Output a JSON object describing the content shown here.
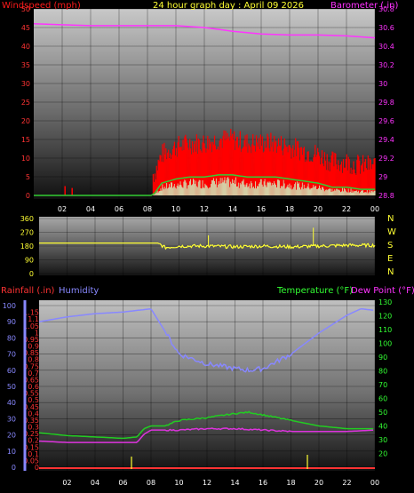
{
  "title": "24 hour graph day : April 09 2026",
  "colors": {
    "wind": "#ff1a1a",
    "gust_bg": "#ff0000",
    "baro": "#ff33ff",
    "winddir": "#ffff33",
    "humidity": "#8888ff",
    "temperature": "#22cc22",
    "dewpoint": "#dd33dd",
    "rain_axis": "#ff3333",
    "yellow_text": "#ffff33",
    "right_green": "#33ff33"
  },
  "x_ticks": [
    "02",
    "04",
    "06",
    "08",
    "10",
    "12",
    "14",
    "16",
    "18",
    "20",
    "22",
    "00"
  ],
  "compass": [
    "N",
    "W",
    "S",
    "E",
    "N"
  ],
  "chart_data": [
    {
      "type": "line",
      "title": "24 hour graph day : April 09 2026",
      "xlabel": "",
      "series": [
        {
          "name": "Windspeed (mph)",
          "x": [
            0,
            8,
            8.5,
            9,
            10,
            11,
            12,
            13,
            14,
            15,
            16,
            17,
            18,
            19,
            20,
            21,
            22,
            23,
            24
          ],
          "values": [
            0,
            0,
            1,
            6,
            8,
            9,
            9,
            10,
            10,
            9,
            9,
            9,
            8,
            7,
            6,
            4,
            4,
            3,
            3
          ]
        },
        {
          "name": "Barometer (.in)",
          "x": [
            0,
            2,
            4,
            6,
            8,
            10,
            12,
            14,
            16,
            18,
            20,
            22,
            24
          ],
          "values": [
            30.64,
            30.63,
            30.62,
            30.62,
            30.62,
            30.62,
            30.6,
            30.56,
            30.53,
            30.52,
            30.52,
            30.51,
            30.49
          ]
        }
      ],
      "left_axis": {
        "label": "Windspeed (mph)",
        "ylim": [
          0,
          50
        ],
        "ticks": [
          0,
          5,
          10,
          15,
          20,
          25,
          30,
          35,
          40,
          45,
          50
        ]
      },
      "right_axis": {
        "label": "Barometer (.in)",
        "ylim": [
          28.8,
          30.8
        ],
        "ticks": [
          "28.8",
          "29",
          "29.2",
          "29.4",
          "29.6",
          "29.8",
          "30",
          "30.2",
          "30.4",
          "30.6",
          "30.8"
        ]
      }
    },
    {
      "type": "line",
      "series": [
        {
          "name": "Wind direction",
          "x": [
            0,
            8.5,
            9,
            10,
            12,
            14,
            16,
            18,
            20,
            22,
            24
          ],
          "values": [
            200,
            200,
            170,
            180,
            180,
            175,
            180,
            175,
            180,
            185,
            185
          ]
        }
      ],
      "ylim": [
        0,
        360
      ],
      "ticks": [
        0,
        90,
        180,
        270,
        360
      ]
    },
    {
      "type": "line",
      "series": [
        {
          "name": "Humidity",
          "x": [
            0,
            2,
            4,
            6,
            7,
            8,
            9,
            10,
            12,
            14,
            15,
            16,
            18,
            20,
            22,
            23,
            24
          ],
          "values": [
            90,
            93,
            95,
            96,
            97,
            98,
            84,
            70,
            64,
            61,
            60,
            61,
            70,
            83,
            94,
            98,
            97
          ]
        },
        {
          "name": "Temperature (°F)",
          "x": [
            0,
            2,
            4,
            6,
            7,
            7.5,
            8,
            9,
            10,
            12,
            14,
            15,
            16,
            18,
            20,
            22,
            24
          ],
          "values": [
            35,
            33,
            32,
            31,
            32,
            38,
            40,
            40,
            44,
            46,
            49,
            50,
            48,
            44,
            40,
            38,
            38
          ]
        },
        {
          "name": "Dew Point (°F)",
          "x": [
            0,
            2,
            4,
            6,
            7,
            7.5,
            8,
            9,
            10,
            12,
            14,
            16,
            18,
            20,
            22,
            24
          ],
          "values": [
            29,
            28,
            28,
            28,
            28,
            34,
            37,
            37,
            37,
            38,
            38,
            37,
            36,
            36,
            36,
            37
          ]
        },
        {
          "name": "Rainfall (.in)",
          "x": [
            0,
            24
          ],
          "values": [
            0,
            0
          ]
        }
      ],
      "left_axis_inner": {
        "label": "Rainfall (.in)",
        "ylim": [
          0,
          1.2
        ],
        "ticks": [
          "0",
          "0.05",
          "0.1",
          "0.15",
          "0.2",
          "0.25",
          "0.3",
          "0.35",
          "0.4",
          "0.45",
          "0.5",
          "0.55",
          "0.6",
          "0.65",
          "0.7",
          "0.75",
          "0.8",
          "0.85",
          "0.9",
          "0.95",
          "1",
          "1.05",
          "1.1",
          "1.15"
        ]
      },
      "left_axis_outer": {
        "label": "Humidity",
        "ylim": [
          0,
          100
        ],
        "ticks": [
          0,
          10,
          20,
          30,
          40,
          50,
          60,
          70,
          80,
          90,
          100
        ]
      },
      "right_axis": {
        "label": "Temperature (°F) Dew Point (°F)",
        "ylim": [
          10,
          130
        ],
        "ticks": [
          20,
          30,
          40,
          50,
          60,
          70,
          80,
          90,
          100,
          110,
          120,
          130
        ]
      }
    }
  ],
  "labels": {
    "wind": "Windspeed (mph)",
    "baro": "Barometer (.in)",
    "rain": "Rainfall (.in)",
    "humidity": "Humidity",
    "temp": "Temperature (°F)",
    "dew": "Dew Point (°F)"
  }
}
